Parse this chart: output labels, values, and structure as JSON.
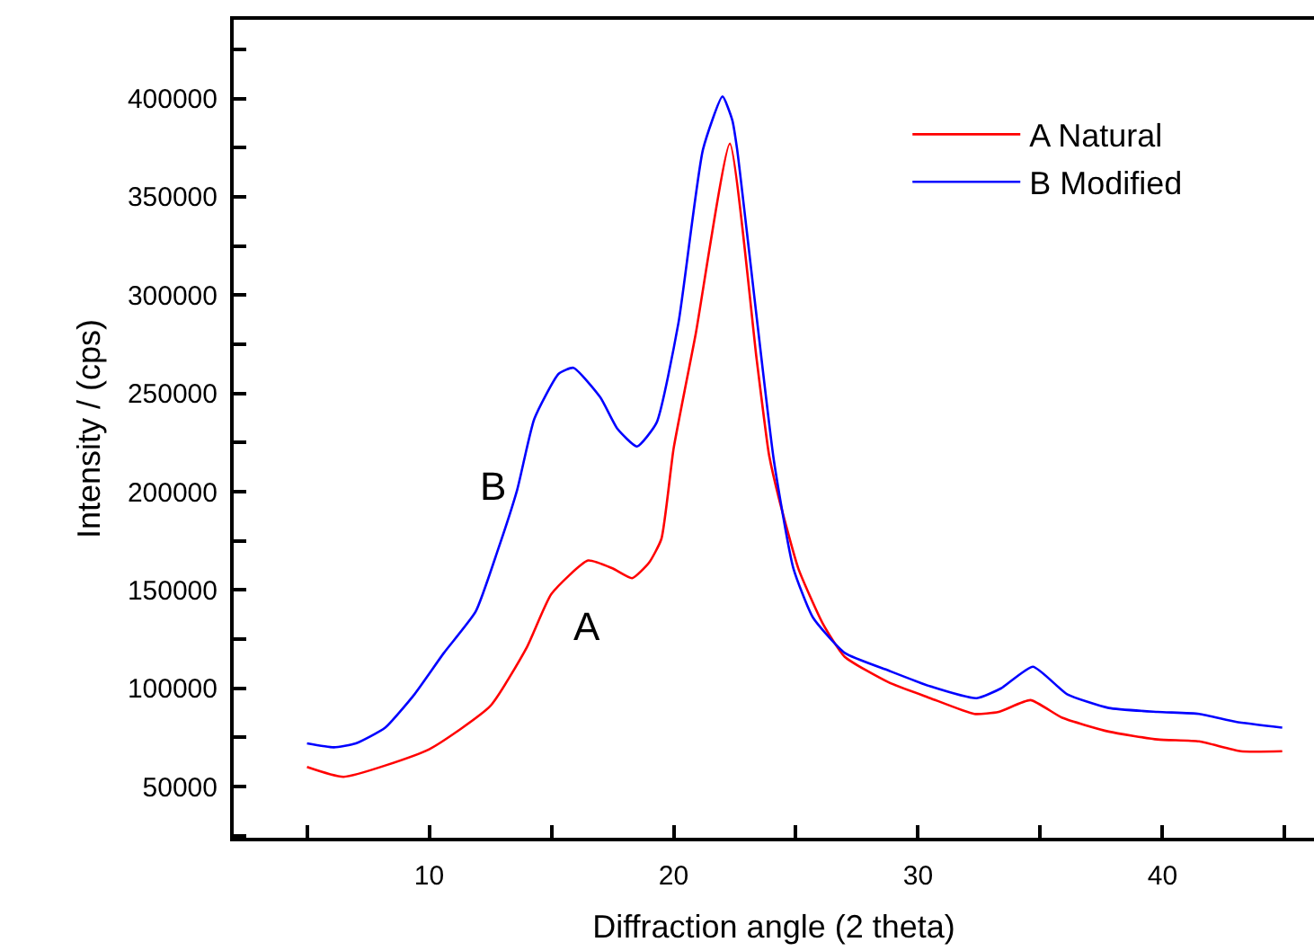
{
  "chart_data": {
    "type": "line",
    "xlabel": "Diffraction angle (2 theta)",
    "ylabel": "Intensity / (cps)",
    "xlim": [
      2,
      46.2
    ],
    "ylim": [
      24000,
      440000
    ],
    "xticks": [
      {
        "value": 5,
        "label": null
      },
      10,
      {
        "value": 15,
        "label": null
      },
      20,
      {
        "value": 25,
        "label": null
      },
      30,
      {
        "value": 35,
        "label": null
      },
      40,
      {
        "value": 45,
        "label": null
      }
    ],
    "yticks": [
      {
        "value": 25000,
        "label": null
      },
      50000,
      {
        "value": 75000,
        "label": null
      },
      100000,
      {
        "value": 125000,
        "label": null
      },
      150000,
      {
        "value": 175000,
        "label": null
      },
      200000,
      {
        "value": 225000,
        "label": null
      },
      250000,
      {
        "value": 275000,
        "label": null
      },
      300000,
      {
        "value": 325000,
        "label": null
      },
      350000,
      {
        "value": 375000,
        "label": null
      },
      400000,
      {
        "value": 425000,
        "label": null
      }
    ],
    "legend": "top right",
    "marker": "none",
    "line_style": "solid",
    "annotations": [
      "B",
      "A"
    ],
    "series": [
      {
        "name": "A Natural",
        "color": "#ff0000",
        "x": [
          5.0,
          6.5,
          10.0,
          12.5,
          14.0,
          15.0,
          16.5,
          17.5,
          18.3,
          19.0,
          19.5,
          20.0,
          20.9,
          22.3,
          23.4,
          23.9,
          24.3,
          25.1,
          26.1,
          27.0,
          28.8,
          30.5,
          32.3,
          33.3,
          34.6,
          35.9,
          37.8,
          39.8,
          41.5,
          43.2,
          44.9
        ],
        "values": [
          60000,
          55000,
          69000,
          91000,
          121000,
          148000,
          165000,
          161000,
          156000,
          164000,
          176000,
          222000,
          280000,
          377000,
          267000,
          219000,
          197000,
          161000,
          133000,
          116000,
          103000,
          95000,
          87000,
          88000,
          94000,
          85000,
          78000,
          74000,
          73000,
          68000,
          68000
        ]
      },
      {
        "name": "B Modified",
        "color": "#0000ff",
        "x": [
          5.0,
          6.1,
          7.0,
          8.2,
          9.4,
          10.6,
          11.9,
          12.8,
          13.6,
          14.3,
          15.3,
          15.9,
          17.0,
          17.7,
          18.5,
          19.3,
          20.2,
          21.2,
          22.0,
          22.4,
          22.6,
          24.1,
          24.9,
          25.7,
          27.0,
          28.8,
          30.5,
          32.4,
          33.4,
          34.7,
          36.1,
          37.8,
          39.8,
          41.5,
          43.0,
          44.9
        ],
        "values": [
          72000,
          70000,
          72000,
          80000,
          97000,
          118000,
          139000,
          170000,
          201000,
          237000,
          260000,
          263000,
          248000,
          232000,
          223000,
          235000,
          286000,
          374000,
          401000,
          389000,
          374000,
          216000,
          161000,
          136000,
          118000,
          109000,
          101000,
          95000,
          100000,
          111000,
          97000,
          90000,
          88000,
          87000,
          83000,
          80000
        ]
      }
    ]
  }
}
